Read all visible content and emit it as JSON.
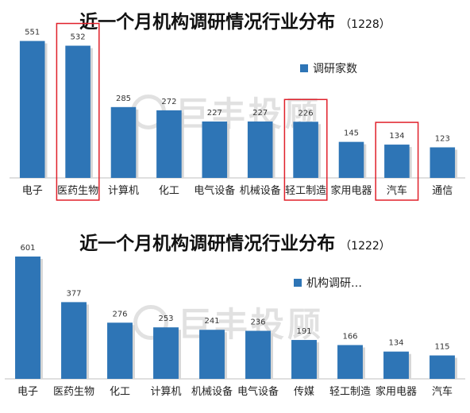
{
  "chart_data": [
    {
      "type": "bar",
      "title": "近一个月机构调研情况行业分布",
      "subtitle": "（1228）",
      "categories": [
        "电子",
        "医药生物",
        "计算机",
        "化工",
        "电气设备",
        "机械设备",
        "轻工制造",
        "家用电器",
        "汽车",
        "通信"
      ],
      "series": [
        {
          "name": "调研家数",
          "values": [
            551,
            532,
            285,
            272,
            227,
            227,
            226,
            145,
            134,
            123
          ]
        }
      ],
      "highlighted": [
        "医药生物",
        "轻工制造",
        "汽车"
      ],
      "ylim": [
        0,
        620
      ],
      "grid": false,
      "legend": "top-right",
      "bar_color": "#2e75b6",
      "highlight_color": "#e0202a"
    },
    {
      "type": "bar",
      "title": "近一个月机构调研情况行业分布",
      "subtitle": "（1222）",
      "categories": [
        "电子",
        "医药生物",
        "化工",
        "计算机",
        "机械设备",
        "电气设备",
        "传媒",
        "轻工制造",
        "家用电器",
        "汽车"
      ],
      "series": [
        {
          "name": "机构调研…",
          "values": [
            601,
            377,
            276,
            253,
            241,
            236,
            191,
            166,
            134,
            115
          ]
        }
      ],
      "ylim": [
        0,
        640
      ],
      "grid": false,
      "legend": "top-right",
      "bar_color": "#2e75b6"
    }
  ],
  "watermark": {
    "text": "巨丰投顾",
    "icon": "company-logo-icon"
  }
}
